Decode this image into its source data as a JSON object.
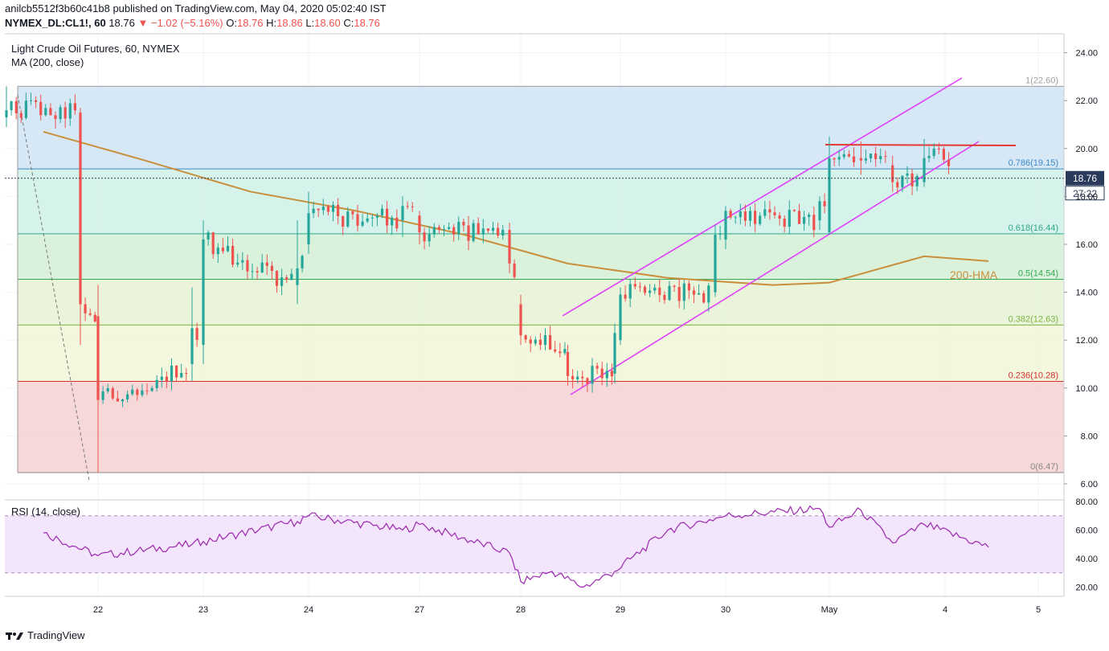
{
  "header": {
    "publish_line": "anilcb5512f3b60c41b8 published on TradingView.com, May 04, 2020 05:02:40 IST",
    "symbol": "NYMEX_DL:CL1!, 60",
    "last": "18.76",
    "change": "−1.02 (−5.16%)",
    "o_label": "O:",
    "o": "18.76",
    "h_label": "H:",
    "h": "18.86",
    "l_label": "L:",
    "l": "18.60",
    "c_label": "C:",
    "c": "18.76"
  },
  "legend": {
    "title": "Light Crude Oil Futures, 60, NYMEX",
    "ma": "MA (200, close)",
    "rsi": "RSI (14, close)"
  },
  "footer": {
    "brand": "TradingView"
  },
  "colors": {
    "up": "#26a69a",
    "down": "#ef5350",
    "ma": "#c98f3c",
    "channel": "#e040fb",
    "resistance": "#e53935",
    "rsi": "#9c27b0",
    "rsi_band": "#f3e5fb",
    "grid": "#f0f3fa",
    "price_tag": "#2a3a5a"
  },
  "chart_data": [
    {
      "type": "candlestick",
      "title": "Light Crude Oil Futures, 60, NYMEX",
      "ylim": [
        6,
        25
      ],
      "y_ticks": [
        "24.00",
        "22.00",
        "20.00",
        "18.00",
        "16.00",
        "14.00",
        "12.00",
        "10.00",
        "8.00",
        "6.00"
      ],
      "x_ticks": [
        "22",
        "23",
        "24",
        "27",
        "28",
        "29",
        "30",
        "May",
        "4",
        "5"
      ],
      "last_price": "18.76",
      "countdown": "27:22",
      "anchor_candles": [
        {
          "x": "21",
          "open": 21.3,
          "high": 22.6,
          "low": 20.9,
          "close": 21.6
        },
        {
          "x": "21",
          "open": 21.5,
          "high": 21.7,
          "low": 11.8,
          "close": 13.5
        },
        {
          "x": "22",
          "open": 13.0,
          "high": 14.3,
          "low": 6.47,
          "close": 9.5
        },
        {
          "x": "22",
          "open": 11.0,
          "high": 14.2,
          "low": 10.3,
          "close": 12.5
        },
        {
          "x": "23",
          "open": 11.8,
          "high": 17.0,
          "low": 11.0,
          "close": 16.2
        },
        {
          "x": "23",
          "open": 14.3,
          "high": 17.0,
          "low": 13.5,
          "close": 15.0
        },
        {
          "x": "24",
          "open": 16.0,
          "high": 18.2,
          "low": 15.6,
          "close": 17.3
        },
        {
          "x": "24",
          "open": 17.0,
          "high": 18.0,
          "low": 16.3,
          "close": 17.6
        },
        {
          "x": "27",
          "open": 17.2,
          "high": 17.4,
          "low": 16.0,
          "close": 16.5
        },
        {
          "x": "27",
          "open": 16.6,
          "high": 16.9,
          "low": 14.8,
          "close": 15.2
        },
        {
          "x": "28",
          "open": 13.5,
          "high": 13.9,
          "low": 11.8,
          "close": 12.2
        },
        {
          "x": "28",
          "open": 11.5,
          "high": 11.8,
          "low": 10.1,
          "close": 10.5
        },
        {
          "x": "28",
          "open": 10.6,
          "high": 12.7,
          "low": 10.2,
          "close": 12.3
        },
        {
          "x": "29",
          "open": 12.0,
          "high": 14.2,
          "low": 11.8,
          "close": 13.9
        },
        {
          "x": "29",
          "open": 14.0,
          "high": 16.8,
          "low": 13.8,
          "close": 16.4
        },
        {
          "x": "30",
          "open": 16.2,
          "high": 17.6,
          "low": 15.8,
          "close": 17.4
        },
        {
          "x": "30",
          "open": 17.0,
          "high": 18.0,
          "low": 16.6,
          "close": 17.8
        },
        {
          "x": "May",
          "open": 16.5,
          "high": 20.5,
          "low": 16.4,
          "close": 19.6
        },
        {
          "x": "May",
          "open": 19.6,
          "high": 20.3,
          "low": 18.9,
          "close": 19.5
        },
        {
          "x": "May",
          "open": 19.3,
          "high": 19.7,
          "low": 18.2,
          "close": 18.6
        },
        {
          "x": "May",
          "open": 18.6,
          "high": 20.4,
          "low": 18.4,
          "close": 19.6
        },
        {
          "x": "4",
          "open": 19.4,
          "high": 19.8,
          "low": 18.6,
          "close": 18.76
        }
      ],
      "ma_200": {
        "name": "200-HMA",
        "points": [
          [
            "21",
            20.7
          ],
          [
            "22",
            19.5
          ],
          [
            "23",
            18.2
          ],
          [
            "24",
            17.4
          ],
          [
            "27",
            16.4
          ],
          [
            "28",
            15.2
          ],
          [
            "29",
            14.6
          ],
          [
            "30",
            14.3
          ],
          [
            "May",
            14.4
          ],
          [
            "May",
            15.5
          ],
          [
            "4",
            15.3
          ]
        ]
      },
      "fibonacci": [
        {
          "ratio": "1",
          "value": 22.6,
          "label": "1(22.60)",
          "color": "#9e9e9e",
          "fill": "#e3e3e3"
        },
        {
          "ratio": "0.786",
          "value": 19.15,
          "label": "0.786(19.15)",
          "color": "#3d88c7",
          "fill": "#d2e6f5"
        },
        {
          "ratio": "0.618",
          "value": 16.44,
          "label": "0.618(16.44)",
          "color": "#2ba78a",
          "fill": "#d2f2e9"
        },
        {
          "ratio": "0.5",
          "value": 14.54,
          "label": "0.5(14.54)",
          "color": "#34a853",
          "fill": "#d6f1d7"
        },
        {
          "ratio": "0.382",
          "value": 12.63,
          "label": "0.382(12.63)",
          "color": "#7cb342",
          "fill": "#e7f3d6"
        },
        {
          "ratio": "0.236",
          "value": 10.28,
          "label": "0.236(10.28)",
          "color": "#d32f2f",
          "fill": "#f1f6d9"
        },
        {
          "ratio": "0",
          "value": 6.47,
          "label": "0(6.47)",
          "color": "#888888",
          "fill": "#f5d4d4"
        }
      ],
      "annotations": [
        "200-HMA"
      ]
    },
    {
      "type": "line",
      "title": "RSI (14, close)",
      "ylim": [
        15,
        82
      ],
      "y_ticks": [
        "80.00",
        "60.00",
        "40.00",
        "20.00"
      ],
      "bands": [
        30,
        70
      ],
      "points": [
        [
          "21",
          58
        ],
        [
          "22",
          42
        ],
        [
          "22",
          50
        ],
        [
          "23",
          52
        ],
        [
          "23",
          66
        ],
        [
          "24",
          70
        ],
        [
          "24",
          60
        ],
        [
          "27",
          64
        ],
        [
          "27",
          44
        ],
        [
          "28",
          24
        ],
        [
          "28",
          31
        ],
        [
          "28",
          20
        ],
        [
          "28",
          31
        ],
        [
          "29",
          60
        ],
        [
          "30",
          70
        ],
        [
          "30",
          75
        ],
        [
          "May",
          62
        ],
        [
          "May",
          74
        ],
        [
          "May",
          51
        ],
        [
          "May",
          64
        ],
        [
          "4",
          48
        ]
      ]
    }
  ]
}
